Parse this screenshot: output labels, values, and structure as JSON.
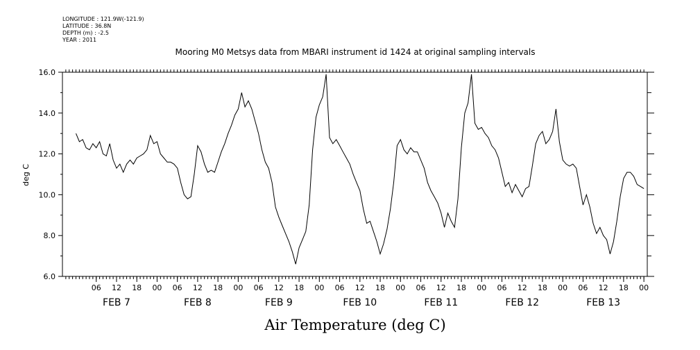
{
  "header": {
    "longitude": "LONGITUDE : 121.9W(-121.9)",
    "latitude": "LATITUDE : 36.8N",
    "depth": "DEPTH (m) : -2.5",
    "year": "YEAR : 2011"
  },
  "chart_data": {
    "type": "line",
    "title": "Mooring M0 Metsys data from MBARI instrument id 1424 at original sampling intervals",
    "xlabel": "Air Temperature (deg C)",
    "ylabel": "deg C",
    "ylim": [
      6.0,
      16.0
    ],
    "xlim_hours": [
      0,
      168
    ],
    "y_ticks": [
      "6.0",
      "8.0",
      "10.0",
      "12.0",
      "14.0",
      "16.0"
    ],
    "y_tick_values": [
      6,
      8,
      10,
      12,
      14,
      16
    ],
    "hour_ticks": [
      {
        "h": 6,
        "label": "06"
      },
      {
        "h": 12,
        "label": "12"
      },
      {
        "h": 18,
        "label": "18"
      },
      {
        "h": 24,
        "label": "00"
      },
      {
        "h": 30,
        "label": "06"
      },
      {
        "h": 36,
        "label": "12"
      },
      {
        "h": 42,
        "label": "18"
      },
      {
        "h": 48,
        "label": "00"
      },
      {
        "h": 54,
        "label": "06"
      },
      {
        "h": 60,
        "label": "12"
      },
      {
        "h": 66,
        "label": "18"
      },
      {
        "h": 72,
        "label": "00"
      },
      {
        "h": 78,
        "label": "06"
      },
      {
        "h": 84,
        "label": "12"
      },
      {
        "h": 90,
        "label": "18"
      },
      {
        "h": 96,
        "label": "00"
      },
      {
        "h": 102,
        "label": "06"
      },
      {
        "h": 108,
        "label": "12"
      },
      {
        "h": 114,
        "label": "18"
      },
      {
        "h": 120,
        "label": "00"
      },
      {
        "h": 126,
        "label": "06"
      },
      {
        "h": 132,
        "label": "12"
      },
      {
        "h": 138,
        "label": "18"
      },
      {
        "h": 144,
        "label": "00"
      },
      {
        "h": 150,
        "label": "06"
      },
      {
        "h": 156,
        "label": "12"
      },
      {
        "h": 162,
        "label": "18"
      },
      {
        "h": 168,
        "label": "00"
      }
    ],
    "date_labels": [
      {
        "h": 12,
        "label": "FEB  7"
      },
      {
        "h": 36,
        "label": "FEB  8"
      },
      {
        "h": 60,
        "label": "FEB  9"
      },
      {
        "h": 84,
        "label": "FEB 10"
      },
      {
        "h": 108,
        "label": "FEB 11"
      },
      {
        "h": 132,
        "label": "FEB 12"
      },
      {
        "h": 156,
        "label": "FEB 13"
      }
    ],
    "series": [
      {
        "color": "#000000",
        "points": [
          [
            0,
            13.0
          ],
          [
            1,
            12.6
          ],
          [
            2,
            12.7
          ],
          [
            3,
            12.3
          ],
          [
            4,
            12.2
          ],
          [
            5,
            12.5
          ],
          [
            6,
            12.3
          ],
          [
            7,
            12.6
          ],
          [
            8,
            12.0
          ],
          [
            9,
            11.9
          ],
          [
            10,
            12.5
          ],
          [
            11,
            11.7
          ],
          [
            12,
            11.3
          ],
          [
            13,
            11.5
          ],
          [
            14,
            11.1
          ],
          [
            15,
            11.5
          ],
          [
            16,
            11.7
          ],
          [
            17,
            11.5
          ],
          [
            18,
            11.8
          ],
          [
            19,
            11.9
          ],
          [
            20,
            12.0
          ],
          [
            21,
            12.2
          ],
          [
            22,
            12.9
          ],
          [
            23,
            12.5
          ],
          [
            24,
            12.6
          ],
          [
            25,
            12.0
          ],
          [
            26,
            11.8
          ],
          [
            27,
            11.6
          ],
          [
            28,
            11.6
          ],
          [
            29,
            11.5
          ],
          [
            30,
            11.3
          ],
          [
            31,
            10.6
          ],
          [
            32,
            10.0
          ],
          [
            33,
            9.8
          ],
          [
            34,
            9.9
          ],
          [
            35,
            11.0
          ],
          [
            36,
            12.4
          ],
          [
            37,
            12.1
          ],
          [
            38,
            11.5
          ],
          [
            39,
            11.1
          ],
          [
            40,
            11.2
          ],
          [
            41,
            11.1
          ],
          [
            42,
            11.6
          ],
          [
            43,
            12.1
          ],
          [
            44,
            12.5
          ],
          [
            45,
            13.0
          ],
          [
            46,
            13.4
          ],
          [
            47,
            13.9
          ],
          [
            48,
            14.2
          ],
          [
            49,
            15.0
          ],
          [
            50,
            14.3
          ],
          [
            51,
            14.6
          ],
          [
            52,
            14.2
          ],
          [
            53,
            13.6
          ],
          [
            54,
            13.0
          ],
          [
            55,
            12.2
          ],
          [
            56,
            11.6
          ],
          [
            57,
            11.3
          ],
          [
            58,
            10.6
          ],
          [
            59,
            9.4
          ],
          [
            60,
            8.9
          ],
          [
            61,
            8.5
          ],
          [
            62,
            8.1
          ],
          [
            63,
            7.7
          ],
          [
            64,
            7.2
          ],
          [
            65,
            6.6
          ],
          [
            66,
            7.4
          ],
          [
            67,
            7.8
          ],
          [
            68,
            8.2
          ],
          [
            69,
            9.5
          ],
          [
            70,
            12.2
          ],
          [
            71,
            13.8
          ],
          [
            72,
            14.4
          ],
          [
            73,
            14.8
          ],
          [
            74,
            15.9
          ],
          [
            75,
            12.8
          ],
          [
            76,
            12.5
          ],
          [
            77,
            12.7
          ],
          [
            78,
            12.4
          ],
          [
            79,
            12.1
          ],
          [
            80,
            11.8
          ],
          [
            81,
            11.5
          ],
          [
            82,
            11.0
          ],
          [
            83,
            10.6
          ],
          [
            84,
            10.2
          ],
          [
            85,
            9.3
          ],
          [
            86,
            8.6
          ],
          [
            87,
            8.7
          ],
          [
            88,
            8.2
          ],
          [
            89,
            7.7
          ],
          [
            90,
            7.1
          ],
          [
            91,
            7.6
          ],
          [
            92,
            8.3
          ],
          [
            93,
            9.3
          ],
          [
            94,
            10.6
          ],
          [
            95,
            12.4
          ],
          [
            96,
            12.7
          ],
          [
            97,
            12.2
          ],
          [
            98,
            12.0
          ],
          [
            99,
            12.3
          ],
          [
            100,
            12.1
          ],
          [
            101,
            12.1
          ],
          [
            102,
            11.7
          ],
          [
            103,
            11.3
          ],
          [
            104,
            10.6
          ],
          [
            105,
            10.2
          ],
          [
            106,
            9.9
          ],
          [
            107,
            9.6
          ],
          [
            108,
            9.1
          ],
          [
            109,
            8.4
          ],
          [
            110,
            9.1
          ],
          [
            111,
            8.7
          ],
          [
            112,
            8.4
          ],
          [
            113,
            9.8
          ],
          [
            114,
            12.3
          ],
          [
            115,
            14.0
          ],
          [
            116,
            14.5
          ],
          [
            117,
            15.9
          ],
          [
            118,
            13.5
          ],
          [
            119,
            13.2
          ],
          [
            120,
            13.3
          ],
          [
            121,
            13.0
          ],
          [
            122,
            12.8
          ],
          [
            123,
            12.4
          ],
          [
            124,
            12.2
          ],
          [
            125,
            11.8
          ],
          [
            126,
            11.1
          ],
          [
            127,
            10.4
          ],
          [
            128,
            10.6
          ],
          [
            129,
            10.1
          ],
          [
            130,
            10.5
          ],
          [
            131,
            10.2
          ],
          [
            132,
            9.9
          ],
          [
            133,
            10.3
          ],
          [
            134,
            10.4
          ],
          [
            135,
            11.4
          ],
          [
            136,
            12.5
          ],
          [
            137,
            12.9
          ],
          [
            138,
            13.1
          ],
          [
            139,
            12.5
          ],
          [
            140,
            12.7
          ],
          [
            141,
            13.1
          ],
          [
            142,
            14.2
          ],
          [
            143,
            12.6
          ],
          [
            144,
            11.7
          ],
          [
            145,
            11.5
          ],
          [
            146,
            11.4
          ],
          [
            147,
            11.5
          ],
          [
            148,
            11.3
          ],
          [
            149,
            10.4
          ],
          [
            150,
            9.5
          ],
          [
            151,
            10.0
          ],
          [
            152,
            9.4
          ],
          [
            153,
            8.6
          ],
          [
            154,
            8.1
          ],
          [
            155,
            8.4
          ],
          [
            156,
            8.0
          ],
          [
            157,
            7.8
          ],
          [
            158,
            7.1
          ],
          [
            159,
            7.7
          ],
          [
            160,
            8.7
          ],
          [
            161,
            9.9
          ],
          [
            162,
            10.8
          ],
          [
            163,
            11.1
          ],
          [
            164,
            11.1
          ],
          [
            165,
            10.9
          ],
          [
            166,
            10.5
          ],
          [
            167,
            10.4
          ],
          [
            168,
            10.3
          ]
        ]
      }
    ]
  }
}
